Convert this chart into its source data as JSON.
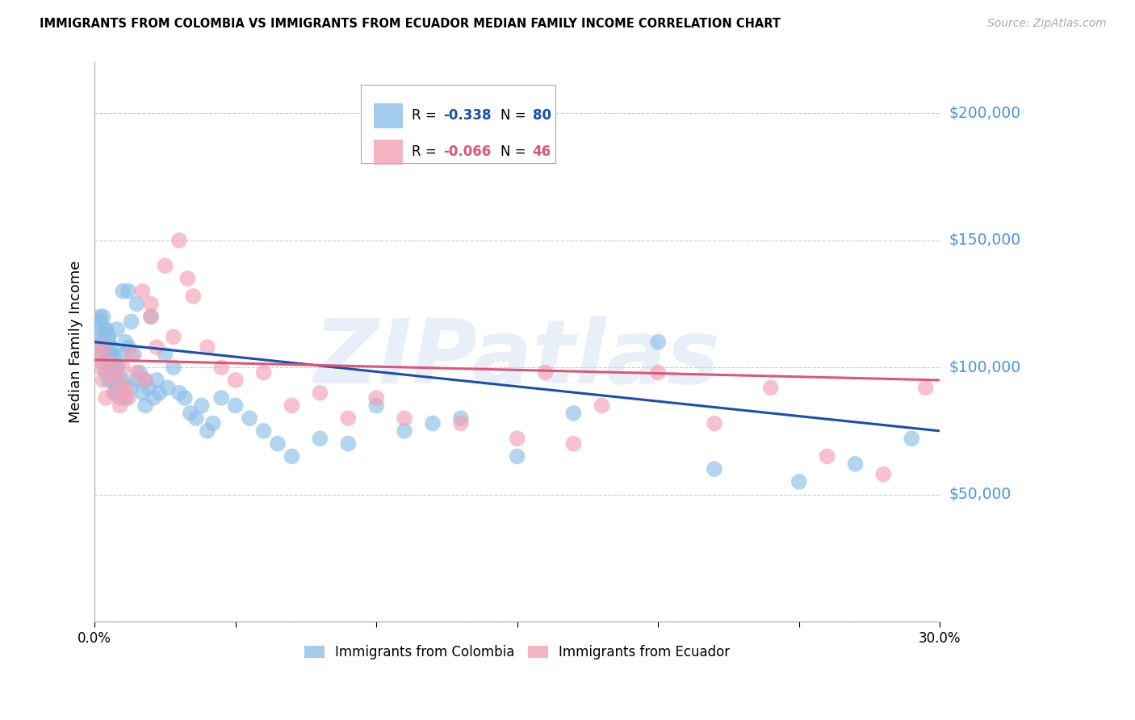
{
  "title": "IMMIGRANTS FROM COLOMBIA VS IMMIGRANTS FROM ECUADOR MEDIAN FAMILY INCOME CORRELATION CHART",
  "source": "Source: ZipAtlas.com",
  "ylabel": "Median Family Income",
  "xlim": [
    0.0,
    0.3
  ],
  "ylim": [
    0,
    220000
  ],
  "yticks": [
    0,
    50000,
    100000,
    150000,
    200000
  ],
  "ytick_labels": [
    "",
    "$50,000",
    "$100,000",
    "$150,000",
    "$200,000"
  ],
  "xticks": [
    0.0,
    0.05,
    0.1,
    0.15,
    0.2,
    0.25,
    0.3
  ],
  "legend_r1": "-0.338",
  "legend_n1": "80",
  "legend_r2": "-0.066",
  "legend_n2": "46",
  "color_colombia": "#8bbfe8",
  "color_ecuador": "#f4a0b5",
  "color_line_colombia": "#1a4faa",
  "color_line_ecuador": "#e05575",
  "color_ytick_labels": "#4499dd",
  "watermark": "ZIPatlas",
  "background_color": "#ffffff",
  "colombia_x": [
    0.001,
    0.001,
    0.002,
    0.002,
    0.002,
    0.003,
    0.003,
    0.003,
    0.004,
    0.004,
    0.004,
    0.005,
    0.005,
    0.005,
    0.005,
    0.006,
    0.006,
    0.006,
    0.007,
    0.007,
    0.007,
    0.008,
    0.008,
    0.008,
    0.009,
    0.009,
    0.01,
    0.01,
    0.01,
    0.011,
    0.011,
    0.012,
    0.012,
    0.013,
    0.013,
    0.014,
    0.015,
    0.015,
    0.016,
    0.017,
    0.018,
    0.018,
    0.019,
    0.02,
    0.021,
    0.022,
    0.023,
    0.025,
    0.026,
    0.028,
    0.03,
    0.032,
    0.034,
    0.036,
    0.038,
    0.04,
    0.042,
    0.045,
    0.05,
    0.055,
    0.06,
    0.065,
    0.07,
    0.08,
    0.09,
    0.1,
    0.11,
    0.12,
    0.13,
    0.15,
    0.17,
    0.2,
    0.22,
    0.25,
    0.27,
    0.29,
    0.002,
    0.004,
    0.006,
    0.008
  ],
  "colombia_y": [
    112000,
    108000,
    118000,
    105000,
    115000,
    110000,
    102000,
    120000,
    108000,
    115000,
    98000,
    110000,
    105000,
    95000,
    112000,
    100000,
    108000,
    95000,
    105000,
    98000,
    90000,
    100000,
    115000,
    92000,
    95000,
    88000,
    130000,
    105000,
    95000,
    110000,
    88000,
    130000,
    108000,
    118000,
    92000,
    105000,
    125000,
    95000,
    98000,
    90000,
    85000,
    95000,
    92000,
    120000,
    88000,
    95000,
    90000,
    105000,
    92000,
    100000,
    90000,
    88000,
    82000,
    80000,
    85000,
    75000,
    78000,
    88000,
    85000,
    80000,
    75000,
    70000,
    65000,
    72000,
    70000,
    85000,
    75000,
    78000,
    80000,
    65000,
    82000,
    110000,
    60000,
    55000,
    62000,
    72000,
    120000,
    115000,
    105000,
    100000
  ],
  "ecuador_x": [
    0.001,
    0.002,
    0.003,
    0.003,
    0.004,
    0.005,
    0.006,
    0.007,
    0.008,
    0.009,
    0.01,
    0.011,
    0.012,
    0.013,
    0.015,
    0.017,
    0.018,
    0.02,
    0.022,
    0.025,
    0.028,
    0.03,
    0.033,
    0.035,
    0.04,
    0.045,
    0.05,
    0.06,
    0.07,
    0.08,
    0.09,
    0.1,
    0.11,
    0.13,
    0.15,
    0.16,
    0.17,
    0.18,
    0.2,
    0.22,
    0.24,
    0.26,
    0.28,
    0.295,
    0.01,
    0.02
  ],
  "ecuador_y": [
    105000,
    100000,
    95000,
    108000,
    88000,
    102000,
    98000,
    90000,
    95000,
    85000,
    100000,
    92000,
    88000,
    105000,
    98000,
    130000,
    95000,
    125000,
    108000,
    140000,
    112000,
    150000,
    135000,
    128000,
    108000,
    100000,
    95000,
    98000,
    85000,
    90000,
    80000,
    88000,
    80000,
    78000,
    72000,
    98000,
    70000,
    85000,
    98000,
    78000,
    92000,
    65000,
    58000,
    92000,
    90000,
    120000
  ]
}
